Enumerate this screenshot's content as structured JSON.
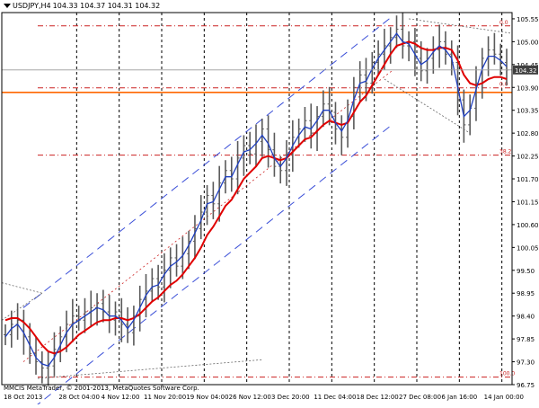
{
  "header": {
    "symbol": "USDJPY,H4",
    "quotes": "104.33 104.37 104.31 104.32"
  },
  "copyright": "MMCIS MetaTrader, © 2001-2013, MetaQuotes Software Corp.",
  "colors": {
    "background": "#ffffff",
    "candle_bar": "#5a5a5a",
    "fast_ma": "#1f3fbf",
    "slow_ma": "#e00000",
    "channel": "#3b4fd8",
    "fib_line": "#cc2222",
    "support_line": "#ff6600",
    "grid": "#000000",
    "price_tag_bg": "#404040",
    "price_tag_fg": "#ffffff"
  },
  "chart_data": {
    "type": "candlestick",
    "instrument": "USDJPY",
    "timeframe": "H4",
    "x_tick_labels": [
      "18 Oct 2013",
      "28 Oct 04:00",
      "4 Nov 12:00",
      "11 Nov 20:00",
      "19 Nov 04:00",
      "26 Nov 12:00",
      "3 Dec 20:00",
      "11 Dec 04:00",
      "18 Dec 12:00",
      "27 Dec 08:00",
      "6 Jan 16:00",
      "14 Jan 00:00"
    ],
    "y_tick_labels": [
      "105.55",
      "105.00",
      "104.45",
      "103.90",
      "103.35",
      "102.80",
      "102.25",
      "101.70",
      "101.15",
      "100.60",
      "100.05",
      "99.50",
      "98.95",
      "98.40",
      "97.85",
      "97.30",
      "96.75"
    ],
    "ylim": [
      96.75,
      105.7
    ],
    "current_price": "104.32",
    "fibonacci": [
      {
        "label": "0.0",
        "price": 105.38
      },
      {
        "label": "0.0",
        "price": 103.89
      },
      {
        "label": "38.2",
        "price": 102.27
      },
      {
        "label": "100.0",
        "price": 96.93
      }
    ],
    "horizontal_levels": [
      {
        "price": 103.78,
        "style": "solid"
      }
    ],
    "close_series": [
      97.95,
      98.2,
      98.3,
      97.9,
      97.5,
      97.3,
      97.15,
      97.2,
      97.6,
      97.9,
      98.2,
      98.4,
      98.3,
      98.5,
      98.6,
      98.7,
      98.5,
      98.3,
      98.5,
      98.2,
      98.0,
      98.4,
      98.8,
      99.0,
      99.3,
      99.1,
      99.5,
      99.8,
      99.6,
      99.9,
      100.2,
      100.5,
      100.9,
      101.3,
      101.1,
      101.6,
      101.9,
      101.7,
      102.2,
      102.5,
      102.3,
      102.6,
      102.9,
      102.4,
      102.0,
      101.9,
      102.3,
      102.7,
      102.9,
      103.1,
      102.8,
      103.2,
      103.5,
      103.3,
      102.9,
      102.7,
      103.2,
      103.9,
      104.2,
      104.0,
      104.5,
      104.7,
      104.9,
      105.1,
      105.3,
      104.9,
      105.0,
      104.6,
      104.3,
      104.6,
      104.8,
      105.0,
      104.7,
      104.5,
      103.6,
      103.0,
      103.4,
      104.0,
      104.6,
      104.8,
      104.7,
      104.5,
      104.32
    ],
    "fast_ma_series": [
      97.9,
      98.1,
      98.2,
      98.0,
      97.7,
      97.4,
      97.25,
      97.2,
      97.4,
      97.7,
      98.0,
      98.2,
      98.3,
      98.4,
      98.5,
      98.6,
      98.55,
      98.4,
      98.4,
      98.3,
      98.1,
      98.3,
      98.6,
      98.9,
      99.1,
      99.15,
      99.4,
      99.6,
      99.7,
      99.85,
      100.1,
      100.4,
      100.7,
      101.1,
      101.15,
      101.45,
      101.75,
      101.75,
      102.05,
      102.35,
      102.4,
      102.55,
      102.75,
      102.55,
      102.2,
      102.0,
      102.2,
      102.5,
      102.75,
      102.95,
      102.9,
      103.1,
      103.35,
      103.35,
      103.05,
      102.85,
      103.1,
      103.6,
      104.0,
      104.05,
      104.35,
      104.6,
      104.8,
      105.0,
      105.2,
      105.0,
      104.95,
      104.7,
      104.45,
      104.55,
      104.75,
      104.9,
      104.8,
      104.6,
      103.9,
      103.2,
      103.35,
      103.85,
      104.35,
      104.65,
      104.65,
      104.55,
      104.4
    ],
    "slow_ma_series": [
      98.3,
      98.35,
      98.35,
      98.25,
      98.1,
      97.9,
      97.7,
      97.55,
      97.5,
      97.55,
      97.65,
      97.8,
      97.95,
      98.05,
      98.15,
      98.25,
      98.3,
      98.3,
      98.35,
      98.35,
      98.3,
      98.35,
      98.45,
      98.6,
      98.75,
      98.85,
      99.0,
      99.15,
      99.25,
      99.4,
      99.6,
      99.8,
      100.05,
      100.35,
      100.55,
      100.8,
      101.05,
      101.2,
      101.45,
      101.7,
      101.85,
      102.0,
      102.2,
      102.25,
      102.2,
      102.15,
      102.2,
      102.35,
      102.5,
      102.65,
      102.7,
      102.85,
      103.0,
      103.1,
      103.05,
      103.0,
      103.05,
      103.3,
      103.55,
      103.7,
      103.95,
      104.2,
      104.45,
      104.7,
      104.9,
      104.95,
      105.0,
      104.95,
      104.85,
      104.8,
      104.8,
      104.85,
      104.85,
      104.8,
      104.55,
      104.2,
      104.0,
      103.95,
      104.0,
      104.1,
      104.15,
      104.15,
      104.1
    ]
  }
}
